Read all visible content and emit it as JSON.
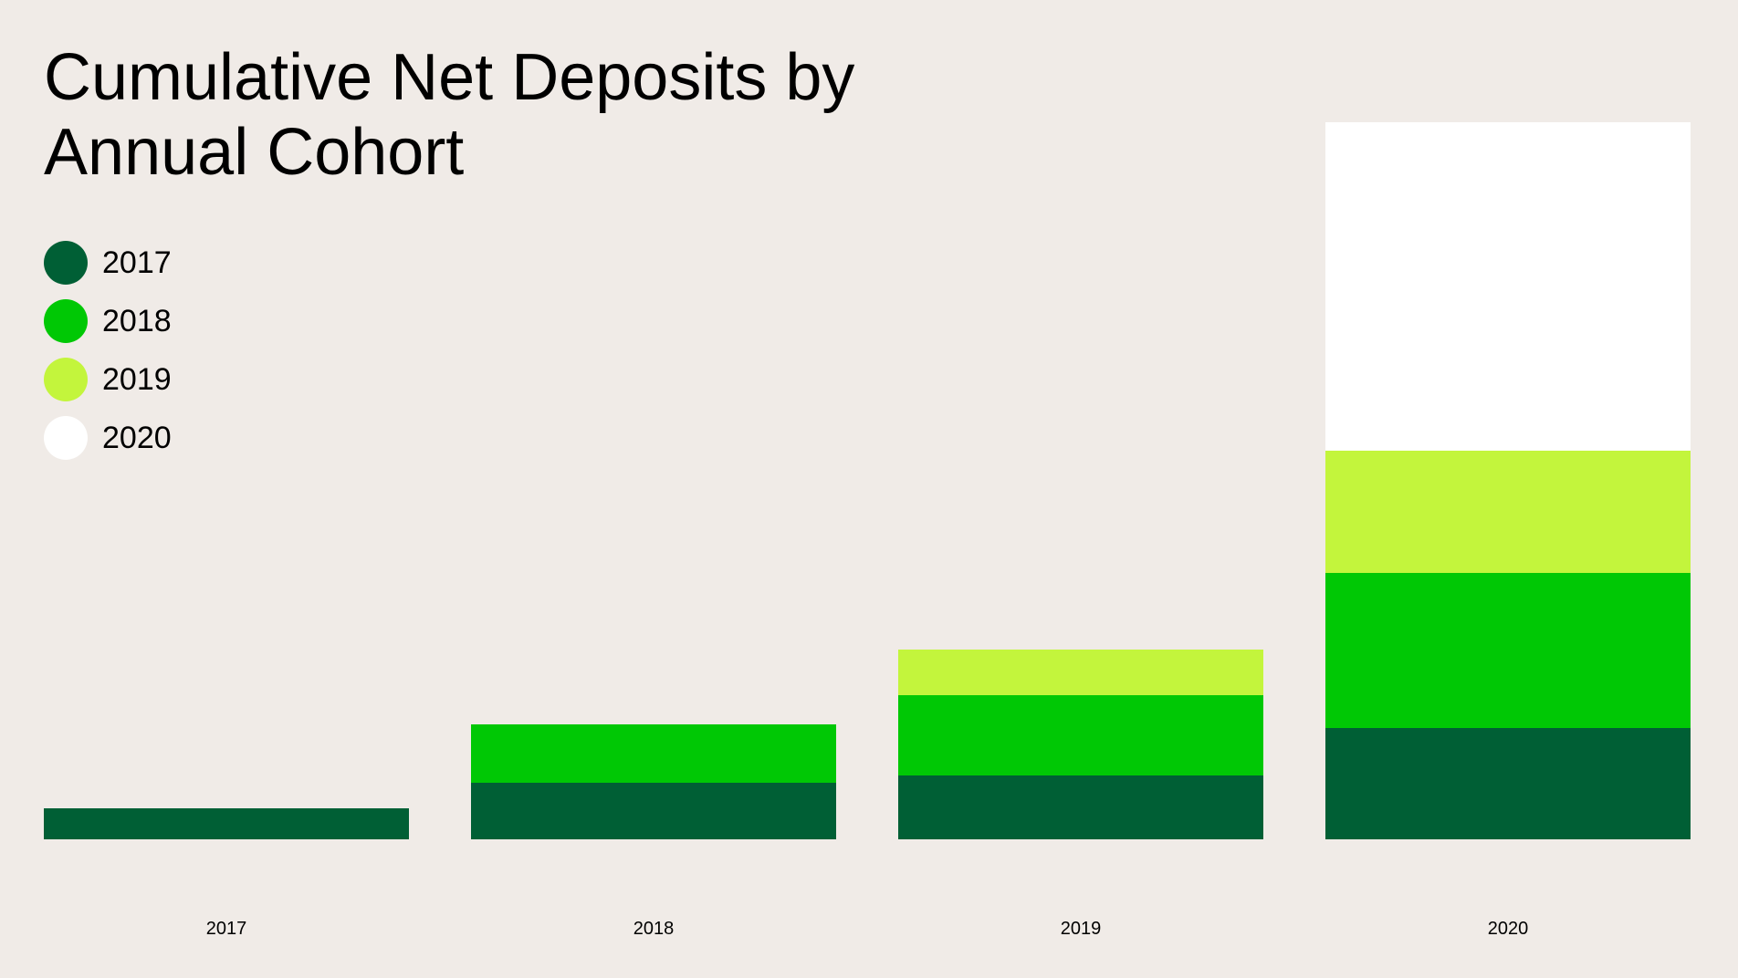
{
  "chart_data": {
    "type": "bar",
    "stacked": true,
    "title": "Cumulative Net Deposits by Annual Cohort",
    "xlabel": "",
    "ylabel": "",
    "categories": [
      "2017",
      "2018",
      "2019",
      "2020"
    ],
    "series": [
      {
        "name": "2017",
        "color": "#005F35",
        "values": [
          34,
          62,
          70,
          122
        ]
      },
      {
        "name": "2018",
        "color": "#00C805",
        "values": [
          0,
          64,
          88,
          170
        ]
      },
      {
        "name": "2019",
        "color": "#C3F53C",
        "values": [
          0,
          0,
          50,
          134
        ]
      },
      {
        "name": "2020",
        "color": "#FFFFFF",
        "values": [
          0,
          0,
          0,
          360
        ]
      }
    ],
    "ylim": [
      0,
      800
    ],
    "grid": false,
    "legend_position": "top-left"
  }
}
